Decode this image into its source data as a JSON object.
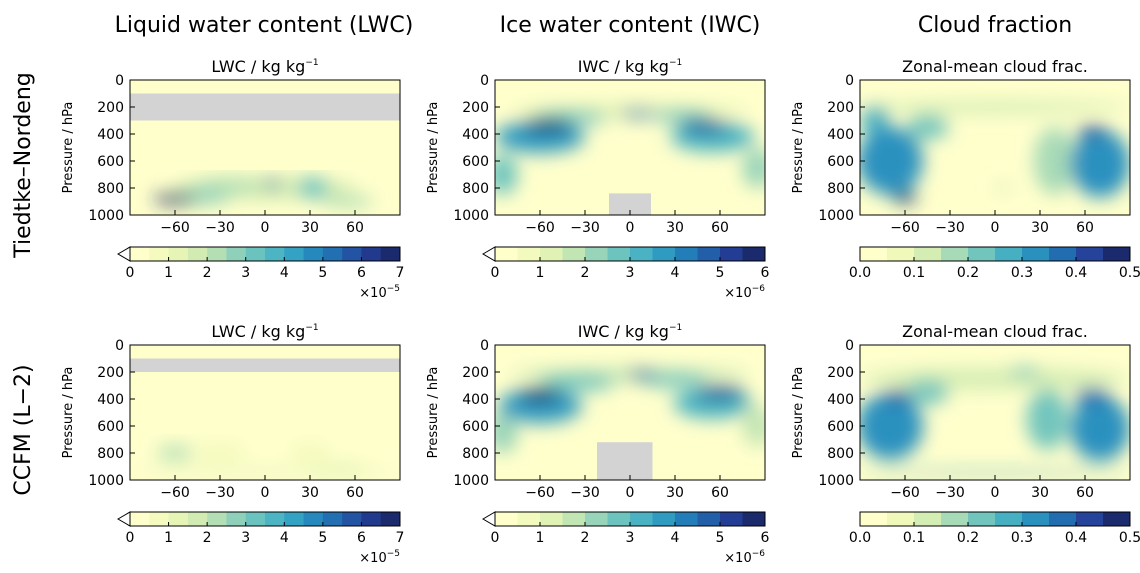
{
  "figure": {
    "column_titles": [
      "Liquid water content (LWC)",
      "Ice water content (IWC)",
      "Cloud fraction"
    ],
    "row_labels": [
      "Tiedtke–Nordeng",
      "CCFM (L−2)"
    ]
  },
  "colors": {
    "palette": [
      "#ffffcc",
      "#f2fabb",
      "#dcf0b2",
      "#b8e1b5",
      "#86cdbb",
      "#59bcc0",
      "#37a7c4",
      "#2386bc",
      "#2266ac",
      "#253f98",
      "#1a2a6c"
    ],
    "missing": "#d3d3d3"
  },
  "chart_data": [
    {
      "type": "heatmap",
      "variable": "LWC",
      "row": "Tiedtke–Nordeng",
      "title": "LWC / kg kg",
      "title_sup": "−1",
      "ylabel": "Pressure / hPa",
      "xlim": [
        -90,
        90
      ],
      "ylim": [
        1000,
        0
      ],
      "xticks": [
        -60,
        -30,
        0,
        30,
        60
      ],
      "yticks": [
        0,
        200,
        400,
        600,
        800,
        1000
      ],
      "colorbar": {
        "ticks": [
          "0",
          "1",
          "2",
          "3",
          "4",
          "5",
          "6",
          "7"
        ],
        "min": 0,
        "max": 7,
        "levels": 14,
        "extend": "min",
        "scale_base": "×10",
        "scale_exp": "−5"
      },
      "masked": [
        {
          "lat": [
            -90,
            90
          ],
          "p": [
            100,
            300
          ],
          "note": "above model top"
        }
      ],
      "field": [
        {
          "lat": -60,
          "p": 880,
          "value": 6.5,
          "lat_width": 14,
          "p_width": 75
        },
        {
          "lat": -45,
          "p": 870,
          "value": 2.5,
          "lat_width": 22,
          "p_width": 100
        },
        {
          "lat": -25,
          "p": 780,
          "value": 2.0,
          "lat_width": 22,
          "p_width": 120
        },
        {
          "lat": 5,
          "p": 770,
          "value": 5.2,
          "lat_width": 5,
          "p_width": 70
        },
        {
          "lat": 32,
          "p": 800,
          "value": 3.2,
          "lat_width": 10,
          "p_width": 160
        },
        {
          "lat": 55,
          "p": 900,
          "value": 2.4,
          "lat_width": 18,
          "p_width": 90
        },
        {
          "lat": 0,
          "p": 800,
          "value": 1.6,
          "lat_width": 60,
          "p_width": 170
        }
      ]
    },
    {
      "type": "heatmap",
      "variable": "IWC",
      "row": "Tiedtke–Nordeng",
      "title": "IWC / kg kg",
      "title_sup": "−1",
      "ylabel": "Pressure / hPa",
      "xlim": [
        -90,
        90
      ],
      "ylim": [
        1000,
        0
      ],
      "xticks": [
        -60,
        -30,
        0,
        30,
        60
      ],
      "yticks": [
        0,
        200,
        400,
        600,
        800,
        1000
      ],
      "colorbar": {
        "ticks": [
          "0",
          "1",
          "2",
          "3",
          "4",
          "5",
          "6"
        ],
        "min": 0,
        "max": 6,
        "levels": 12,
        "extend": "min",
        "scale_base": "×10",
        "scale_exp": "−6"
      },
      "masked": [
        {
          "lat": [
            -14,
            14
          ],
          "p": [
            840,
            1000
          ],
          "note": "no data"
        }
      ],
      "field": [
        {
          "lat": -55,
          "p": 340,
          "value": 5.8,
          "lat_width": 16,
          "p_width": 90
        },
        {
          "lat": -60,
          "p": 420,
          "value": 3.5,
          "lat_width": 30,
          "p_width": 240
        },
        {
          "lat": -40,
          "p": 280,
          "value": 2.5,
          "lat_width": 25,
          "p_width": 100
        },
        {
          "lat": 5,
          "p": 250,
          "value": 4.0,
          "lat_width": 12,
          "p_width": 60
        },
        {
          "lat": 50,
          "p": 340,
          "value": 5.2,
          "lat_width": 16,
          "p_width": 80
        },
        {
          "lat": 55,
          "p": 420,
          "value": 3.2,
          "lat_width": 28,
          "p_width": 220
        },
        {
          "lat": 35,
          "p": 270,
          "value": 2.5,
          "lat_width": 20,
          "p_width": 90
        },
        {
          "lat": -85,
          "p": 700,
          "value": 2.5,
          "lat_width": 10,
          "p_width": 300
        },
        {
          "lat": 85,
          "p": 650,
          "value": 2.0,
          "lat_width": 10,
          "p_width": 300
        },
        {
          "lat": 0,
          "p": 230,
          "value": 1.2,
          "lat_width": 80,
          "p_width": 100
        }
      ]
    },
    {
      "type": "heatmap",
      "variable": "Cloud fraction",
      "row": "Tiedtke–Nordeng",
      "title": "Zonal-mean cloud frac.",
      "title_sup": "",
      "ylabel": "Pressure / hPa",
      "xlim": [
        -90,
        90
      ],
      "ylim": [
        1000,
        0
      ],
      "xticks": [
        -60,
        -30,
        0,
        30,
        60
      ],
      "yticks": [
        0,
        200,
        400,
        600,
        800,
        1000
      ],
      "colorbar": {
        "ticks": [
          "0.0",
          "0.1",
          "0.2",
          "0.3",
          "0.4",
          "0.5"
        ],
        "min": 0,
        "max": 0.5,
        "levels": 10,
        "extend": "none",
        "scale_base": "",
        "scale_exp": ""
      },
      "masked": [],
      "field": [
        {
          "lat": -60,
          "p": 870,
          "value": 0.45,
          "lat_width": 8,
          "p_width": 80
        },
        {
          "lat": -70,
          "p": 600,
          "value": 0.33,
          "lat_width": 22,
          "p_width": 500
        },
        {
          "lat": -45,
          "p": 350,
          "value": 0.24,
          "lat_width": 14,
          "p_width": 180
        },
        {
          "lat": -80,
          "p": 300,
          "value": 0.26,
          "lat_width": 10,
          "p_width": 200
        },
        {
          "lat": 65,
          "p": 380,
          "value": 0.4,
          "lat_width": 10,
          "p_width": 80
        },
        {
          "lat": 70,
          "p": 620,
          "value": 0.3,
          "lat_width": 20,
          "p_width": 500
        },
        {
          "lat": 40,
          "p": 600,
          "value": 0.18,
          "lat_width": 14,
          "p_width": 500
        },
        {
          "lat": 0,
          "p": 200,
          "value": 0.13,
          "lat_width": 90,
          "p_width": 90
        },
        {
          "lat": 5,
          "p": 800,
          "value": 0.12,
          "lat_width": 6,
          "p_width": 60
        }
      ]
    },
    {
      "type": "heatmap",
      "variable": "LWC",
      "row": "CCFM (L−2)",
      "title": "LWC / kg kg",
      "title_sup": "−1",
      "ylabel": "Pressure / hPa",
      "xlim": [
        -90,
        90
      ],
      "ylim": [
        1000,
        0
      ],
      "xticks": [
        -60,
        -30,
        0,
        30,
        60
      ],
      "yticks": [
        0,
        200,
        400,
        600,
        800,
        1000
      ],
      "colorbar": {
        "ticks": [
          "0",
          "1",
          "2",
          "3",
          "4",
          "5",
          "6",
          "7"
        ],
        "min": 0,
        "max": 7,
        "levels": 14,
        "extend": "min",
        "scale_base": "×10",
        "scale_exp": "−5"
      },
      "masked": [
        {
          "lat": [
            -90,
            90
          ],
          "p": [
            100,
            200
          ],
          "note": "above model top"
        }
      ],
      "field": [
        {
          "lat": -60,
          "p": 800,
          "value": 2.2,
          "lat_width": 12,
          "p_width": 110
        },
        {
          "lat": 0,
          "p": 940,
          "value": 1.8,
          "lat_width": 90,
          "p_width": 25
        },
        {
          "lat": 50,
          "p": 920,
          "value": 1.4,
          "lat_width": 18,
          "p_width": 80
        },
        {
          "lat": 30,
          "p": 800,
          "value": 0.8,
          "lat_width": 14,
          "p_width": 180
        },
        {
          "lat": -30,
          "p": 800,
          "value": 0.7,
          "lat_width": 18,
          "p_width": 180
        }
      ]
    },
    {
      "type": "heatmap",
      "variable": "IWC",
      "row": "CCFM (L−2)",
      "title": "IWC / kg kg",
      "title_sup": "−1",
      "ylabel": "Pressure / hPa",
      "xlim": [
        -90,
        90
      ],
      "ylim": [
        1000,
        0
      ],
      "xticks": [
        -60,
        -30,
        0,
        30,
        60
      ],
      "yticks": [
        0,
        200,
        400,
        600,
        800,
        1000
      ],
      "colorbar": {
        "ticks": [
          "0",
          "1",
          "2",
          "3",
          "4",
          "5",
          "6"
        ],
        "min": 0,
        "max": 6,
        "levels": 12,
        "extend": "min",
        "scale_base": "×10",
        "scale_exp": "−6"
      },
      "masked": [
        {
          "lat": [
            -22,
            15
          ],
          "p": [
            720,
            1000
          ],
          "note": "no data"
        }
      ],
      "field": [
        {
          "lat": -60,
          "p": 370,
          "value": 5.8,
          "lat_width": 14,
          "p_width": 100
        },
        {
          "lat": -60,
          "p": 450,
          "value": 3.8,
          "lat_width": 28,
          "p_width": 260
        },
        {
          "lat": -35,
          "p": 280,
          "value": 2.6,
          "lat_width": 25,
          "p_width": 120
        },
        {
          "lat": 8,
          "p": 220,
          "value": 4.5,
          "lat_width": 10,
          "p_width": 60
        },
        {
          "lat": 60,
          "p": 350,
          "value": 5.0,
          "lat_width": 16,
          "p_width": 90
        },
        {
          "lat": 55,
          "p": 430,
          "value": 3.2,
          "lat_width": 26,
          "p_width": 230
        },
        {
          "lat": 30,
          "p": 260,
          "value": 2.6,
          "lat_width": 22,
          "p_width": 100
        },
        {
          "lat": -85,
          "p": 650,
          "value": 2.2,
          "lat_width": 10,
          "p_width": 300
        },
        {
          "lat": 85,
          "p": 600,
          "value": 1.8,
          "lat_width": 10,
          "p_width": 300
        },
        {
          "lat": 0,
          "p": 220,
          "value": 1.5,
          "lat_width": 80,
          "p_width": 100
        }
      ]
    },
    {
      "type": "heatmap",
      "variable": "Cloud fraction",
      "row": "CCFM (L−2)",
      "title": "Zonal-mean cloud frac.",
      "title_sup": "",
      "ylabel": "Pressure / hPa",
      "xlim": [
        -90,
        90
      ],
      "ylim": [
        1000,
        0
      ],
      "xticks": [
        -60,
        -30,
        0,
        30,
        60
      ],
      "yticks": [
        0,
        200,
        400,
        600,
        800,
        1000
      ],
      "colorbar": {
        "ticks": [
          "0.0",
          "0.1",
          "0.2",
          "0.3",
          "0.4",
          "0.5"
        ],
        "min": 0,
        "max": 0.5,
        "levels": 10,
        "extend": "none",
        "scale_base": "",
        "scale_exp": ""
      },
      "masked": [],
      "field": [
        {
          "lat": -65,
          "p": 380,
          "value": 0.42,
          "lat_width": 8,
          "p_width": 90
        },
        {
          "lat": -70,
          "p": 600,
          "value": 0.33,
          "lat_width": 22,
          "p_width": 500
        },
        {
          "lat": -45,
          "p": 350,
          "value": 0.22,
          "lat_width": 14,
          "p_width": 180
        },
        {
          "lat": 65,
          "p": 380,
          "value": 0.35,
          "lat_width": 12,
          "p_width": 120
        },
        {
          "lat": 70,
          "p": 620,
          "value": 0.3,
          "lat_width": 20,
          "p_width": 480
        },
        {
          "lat": 35,
          "p": 550,
          "value": 0.2,
          "lat_width": 14,
          "p_width": 450
        },
        {
          "lat": 20,
          "p": 200,
          "value": 0.22,
          "lat_width": 10,
          "p_width": 70
        },
        {
          "lat": 0,
          "p": 945,
          "value": 0.33,
          "lat_width": 90,
          "p_width": 20
        },
        {
          "lat": 0,
          "p": 250,
          "value": 0.14,
          "lat_width": 90,
          "p_width": 160
        }
      ]
    }
  ]
}
